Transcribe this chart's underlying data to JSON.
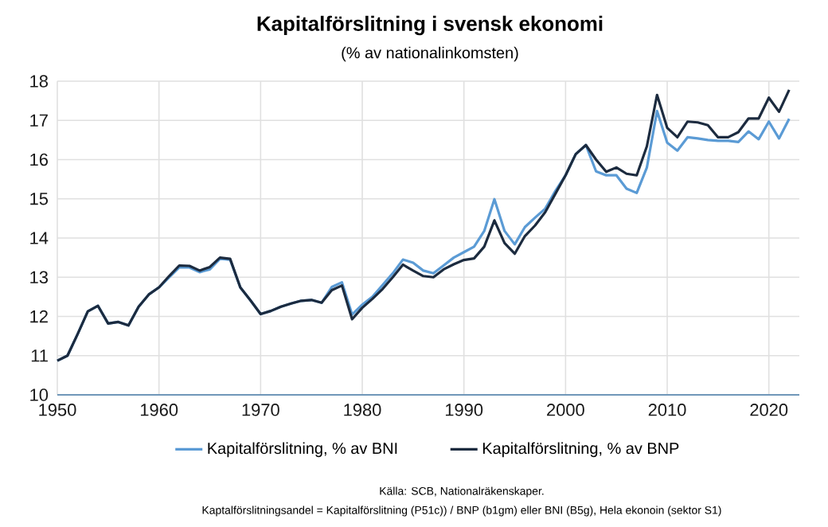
{
  "chart_data": {
    "type": "line",
    "title": "Kapitalförslitning i svensk ekonomi",
    "subtitle": "(% av nationalinkomsten)",
    "x": [
      1950,
      1951,
      1952,
      1953,
      1954,
      1955,
      1956,
      1957,
      1958,
      1959,
      1960,
      1961,
      1962,
      1963,
      1964,
      1965,
      1966,
      1967,
      1968,
      1969,
      1970,
      1971,
      1972,
      1973,
      1974,
      1975,
      1976,
      1977,
      1978,
      1979,
      1980,
      1981,
      1982,
      1983,
      1984,
      1985,
      1986,
      1987,
      1988,
      1989,
      1990,
      1991,
      1992,
      1993,
      1994,
      1995,
      1996,
      1997,
      1998,
      1999,
      2000,
      2001,
      2002,
      2003,
      2004,
      2005,
      2006,
      2007,
      2008,
      2009,
      2010,
      2011,
      2012,
      2013,
      2014,
      2015,
      2016,
      2017,
      2018,
      2019,
      2020,
      2021,
      2022
    ],
    "series": [
      {
        "name": "Kapitalförslitning, % av BNI",
        "color": "#5b9bd5",
        "values": [
          10.87,
          11.0,
          11.55,
          12.13,
          12.27,
          11.82,
          11.86,
          11.77,
          12.25,
          12.56,
          12.74,
          13.0,
          13.25,
          13.25,
          13.13,
          13.2,
          13.47,
          13.45,
          12.74,
          12.41,
          12.06,
          12.14,
          12.25,
          12.33,
          12.4,
          12.42,
          12.35,
          12.75,
          12.87,
          12.05,
          12.3,
          12.5,
          12.8,
          13.1,
          13.45,
          13.37,
          13.17,
          13.1,
          13.3,
          13.5,
          13.64,
          13.78,
          14.18,
          14.99,
          14.18,
          13.84,
          14.28,
          14.52,
          14.75,
          15.2,
          15.6,
          16.14,
          16.37,
          15.7,
          15.6,
          15.6,
          15.26,
          15.15,
          15.8,
          17.24,
          16.43,
          16.23,
          16.57,
          16.54,
          16.5,
          16.48,
          16.48,
          16.45,
          16.72,
          16.52,
          16.97,
          16.54,
          17.04
        ]
      },
      {
        "name": "Kapitalförslitning, % av BNP",
        "color": "#1c2b3f",
        "values": [
          10.87,
          11.0,
          11.55,
          12.13,
          12.27,
          11.82,
          11.86,
          11.77,
          12.25,
          12.56,
          12.74,
          13.03,
          13.3,
          13.29,
          13.17,
          13.26,
          13.5,
          13.47,
          12.74,
          12.41,
          12.06,
          12.14,
          12.25,
          12.33,
          12.4,
          12.42,
          12.35,
          12.67,
          12.79,
          11.93,
          12.22,
          12.45,
          12.7,
          13.0,
          13.32,
          13.17,
          13.03,
          13.0,
          13.2,
          13.33,
          13.44,
          13.48,
          13.78,
          14.45,
          13.87,
          13.6,
          14.05,
          14.32,
          14.66,
          15.13,
          15.6,
          16.14,
          16.37,
          16.0,
          15.69,
          15.8,
          15.64,
          15.6,
          16.34,
          17.65,
          16.81,
          16.57,
          16.97,
          16.95,
          16.88,
          16.57,
          16.57,
          16.7,
          17.05,
          17.05,
          17.58,
          17.22,
          17.78
        ]
      }
    ],
    "xlim": [
      1950,
      2023
    ],
    "ylim": [
      10,
      18
    ],
    "xticks": [
      1950,
      1960,
      1970,
      1980,
      1990,
      2000,
      2010,
      2020
    ],
    "yticks": [
      10,
      11,
      12,
      13,
      14,
      15,
      16,
      17,
      18
    ],
    "grid": true,
    "legend": "bottom",
    "marker": "none",
    "line_style": "solid",
    "annotations": [
      "Källa: SCB, Nationalräkenskaper.",
      "Kaptalförslitningsandel = Kapitalförslitning (P51c)) / BNP (b1gm) eller BNI (B5g), Hela ekonoin (sektor S1)"
    ]
  }
}
